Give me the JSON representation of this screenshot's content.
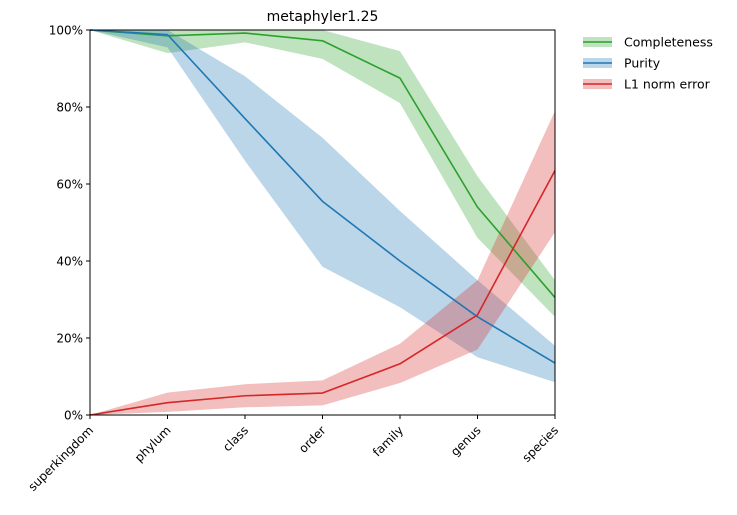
{
  "chart_data": {
    "type": "line",
    "title": "metaphyler1.25",
    "xlabel": "",
    "ylabel": "",
    "x_categories": [
      "superkingdom",
      "phylum",
      "class",
      "order",
      "family",
      "genus",
      "species"
    ],
    "ylim": [
      0,
      100
    ],
    "y_ticks": [
      0,
      20,
      40,
      60,
      80,
      100
    ],
    "y_tick_labels": [
      "0%",
      "20%",
      "40%",
      "60%",
      "80%",
      "100%"
    ],
    "grid": false,
    "legend_position": "outside-top-right",
    "series": [
      {
        "name": "Completeness",
        "color": "#2ca02c",
        "band_color": "#2ca02c",
        "values": [
          100,
          98.5,
          99.2,
          97.2,
          87.5,
          54,
          30.5
        ],
        "lower": [
          100,
          94,
          96.8,
          92.5,
          81,
          46,
          25.5
        ],
        "upper": [
          100,
          100,
          100,
          100,
          94.5,
          62,
          35
        ]
      },
      {
        "name": "Purity",
        "color": "#1f77b4",
        "band_color": "#1f77b4",
        "values": [
          100,
          98.8,
          77,
          55.5,
          40,
          25.5,
          13.5
        ],
        "lower": [
          100,
          95.5,
          66,
          38.5,
          28,
          15,
          8.5
        ],
        "upper": [
          100,
          100,
          88,
          72,
          53,
          35,
          18
        ]
      },
      {
        "name": "L1 norm error",
        "color": "#d62728",
        "band_color": "#d62728",
        "values": [
          0,
          3.2,
          5,
          5.7,
          13.3,
          26,
          63.5
        ],
        "lower": [
          0,
          0.8,
          2,
          2.5,
          8.3,
          17,
          47.5
        ],
        "upper": [
          0,
          5.8,
          8,
          9,
          18.5,
          35,
          79
        ]
      }
    ]
  }
}
